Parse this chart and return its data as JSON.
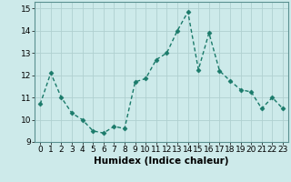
{
  "x": [
    0,
    1,
    2,
    3,
    4,
    5,
    6,
    7,
    8,
    9,
    10,
    11,
    12,
    13,
    14,
    15,
    16,
    17,
    18,
    19,
    20,
    21,
    22,
    23
  ],
  "y": [
    10.7,
    12.1,
    11.0,
    10.3,
    10.0,
    9.5,
    9.4,
    9.7,
    9.6,
    11.7,
    11.85,
    12.7,
    13.0,
    14.0,
    14.85,
    12.25,
    13.9,
    12.2,
    11.75,
    11.35,
    11.25,
    10.5,
    11.0,
    10.5
  ],
  "line_color": "#1a7a6a",
  "marker_color": "#1a7a6a",
  "bg_color": "#cdeaea",
  "grid_color": "#b0d0d0",
  "xlabel": "Humidex (Indice chaleur)",
  "xlim": [
    -0.5,
    23.5
  ],
  "ylim": [
    9.0,
    15.3
  ],
  "yticks": [
    9,
    10,
    11,
    12,
    13,
    14,
    15
  ],
  "xticks": [
    0,
    1,
    2,
    3,
    4,
    5,
    6,
    7,
    8,
    9,
    10,
    11,
    12,
    13,
    14,
    15,
    16,
    17,
    18,
    19,
    20,
    21,
    22,
    23
  ],
  "xlabel_fontsize": 7.5,
  "tick_fontsize": 6.5,
  "linewidth": 1.0,
  "markersize": 2.5
}
